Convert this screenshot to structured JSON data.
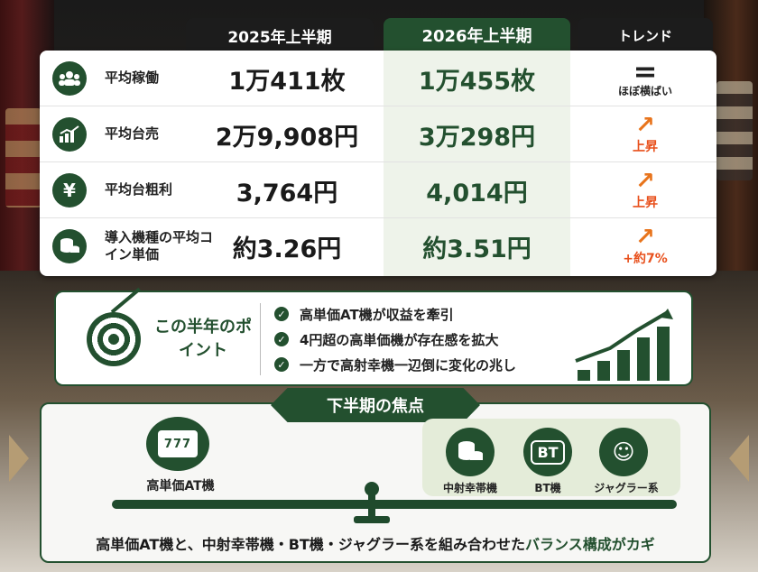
{
  "header": {
    "col_2025": "2025年上半期",
    "col_2026": "2026年上半期",
    "col_trend": "トレンド"
  },
  "rows": [
    {
      "label": "平均稼働",
      "v2025": "1万411枚",
      "v2026": "1万455枚",
      "trend_symbol": "=",
      "trend_text": "ほぼ横ばい"
    },
    {
      "label": "平均台売",
      "v2025": "2万9,908円",
      "v2026": "3万298円",
      "trend_symbol": "↗",
      "trend_text": "上昇"
    },
    {
      "label": "平均台粗利",
      "v2025": "3,764円",
      "v2026": "4,014円",
      "trend_symbol": "↗",
      "trend_text": "上昇"
    },
    {
      "label": "導入機種の平均コイン単価",
      "v2025": "約3.26円",
      "v2026": "約3.51円",
      "trend_symbol": "↗",
      "trend_text": "+約7%"
    }
  ],
  "point": {
    "title": "この半年のポイント",
    "items": [
      "高単価AT機が収益を牽引",
      "4円超の高単価機が存在感を拡大",
      "一方で高射幸機一辺倒に変化の兆し"
    ]
  },
  "focus": {
    "title": "下半期の焦点",
    "left_label": "高単価AT機",
    "slot_text": "777",
    "right_labels": [
      "中射幸帯機",
      "BT機",
      "ジャグラー系"
    ],
    "bt_text": "BT",
    "bottom_prefix": "高単価AT機と、中射幸帯機・BT機・ジャグラー系を組み合わせた",
    "bottom_highlight": "バランス構成がカギ"
  },
  "colors": {
    "accent": "#23502f",
    "trend_up": "#e8741c"
  }
}
